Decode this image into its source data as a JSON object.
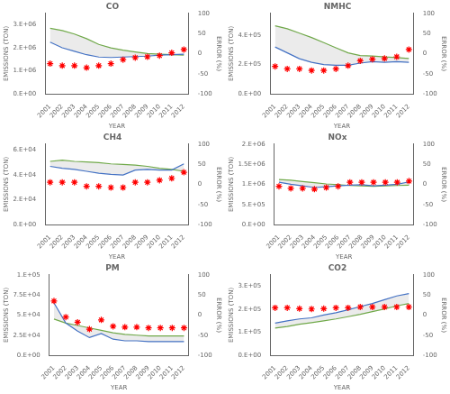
{
  "chart_data": [
    {
      "type": "line",
      "title": "CO",
      "xlabel": "YEAR",
      "ylabel": "EMISSIONS (TON)",
      "y2label": "ERROR (%)",
      "x": [
        2001,
        2002,
        2003,
        2004,
        2005,
        2006,
        2007,
        2008,
        2009,
        2010,
        2011,
        2012
      ],
      "xlim": [
        2000.6,
        2012.4
      ],
      "xticks": [
        2001,
        2002,
        2003,
        2004,
        2005,
        2006,
        2007,
        2008,
        2009,
        2010,
        2011,
        2012
      ],
      "ylim": [
        0,
        3500000
      ],
      "yticks": [
        {
          "value": 0,
          "label": "0.E+00"
        },
        {
          "value": 1000000,
          "label": "1.E+06"
        },
        {
          "value": 2000000,
          "label": "2.E+06"
        },
        {
          "value": 3000000,
          "label": "3.E+06"
        }
      ],
      "y2lim": [
        -100,
        100
      ],
      "y2ticks": [
        -100,
        -50,
        0,
        50,
        100
      ],
      "grid": false,
      "series": [
        {
          "color": "#4472C4",
          "values": [
            2250000,
            2000000,
            1850000,
            1700000,
            1600000,
            1580000,
            1600000,
            1620000,
            1640000,
            1680000,
            1700000,
            1720000
          ]
        },
        {
          "color": "#70AD47",
          "values": [
            2850000,
            2750000,
            2600000,
            2400000,
            2150000,
            2000000,
            1900000,
            1820000,
            1750000,
            1720000,
            1700000,
            1680000
          ]
        },
        {
          "type": "scatter",
          "axis": "y2",
          "color": "#FF0000",
          "marker": "star",
          "line_style": "none",
          "values": [
            -25,
            -30,
            -30,
            -35,
            -30,
            -25,
            -15,
            -10,
            -8,
            -5,
            2,
            10
          ]
        }
      ]
    },
    {
      "type": "line",
      "title": "NMHC",
      "xlabel": "YEAR",
      "ylabel": "EMISSIONS (TON)",
      "y2label": "ERROR (%)",
      "x": [
        2001,
        2002,
        2003,
        2004,
        2005,
        2006,
        2007,
        2008,
        2009,
        2010,
        2011,
        2012
      ],
      "xlim": [
        2000.6,
        2012.4
      ],
      "xticks": [
        2001,
        2002,
        2003,
        2004,
        2005,
        2006,
        2007,
        2008,
        2009,
        2010,
        2011,
        2012
      ],
      "ylim": [
        0,
        550000
      ],
      "yticks": [
        {
          "value": 0,
          "label": "0.E+00"
        },
        {
          "value": 200000,
          "label": "2.E+05"
        },
        {
          "value": 400000,
          "label": "4.E+05"
        }
      ],
      "y2lim": [
        -100,
        100
      ],
      "y2ticks": [
        -100,
        -50,
        0,
        50,
        100
      ],
      "grid": false,
      "series": [
        {
          "color": "#4472C4",
          "values": [
            320000,
            280000,
            240000,
            215000,
            200000,
            195000,
            195000,
            210000,
            220000,
            215000,
            220000,
            215000
          ]
        },
        {
          "color": "#70AD47",
          "values": [
            465000,
            445000,
            415000,
            385000,
            350000,
            315000,
            280000,
            262000,
            258000,
            252000,
            248000,
            242000
          ]
        },
        {
          "type": "scatter",
          "axis": "y2",
          "color": "#FF0000",
          "marker": "star",
          "line_style": "none",
          "values": [
            -32,
            -38,
            -38,
            -42,
            -42,
            -38,
            -30,
            -18,
            -14,
            -12,
            -8,
            10
          ]
        }
      ]
    },
    {
      "type": "line",
      "title": "CH4",
      "xlabel": "YEAR",
      "ylabel": "EMISSIONS (TON)",
      "y2label": "ERROR (%)",
      "x": [
        2001,
        2002,
        2003,
        2004,
        2005,
        2006,
        2007,
        2008,
        2009,
        2010,
        2011,
        2012
      ],
      "xlim": [
        2000.6,
        2012.4
      ],
      "xticks": [
        2001,
        2002,
        2003,
        2004,
        2005,
        2006,
        2007,
        2008,
        2009,
        2010,
        2011,
        2012
      ],
      "ylim": [
        0,
        65000
      ],
      "yticks": [
        {
          "value": 0,
          "label": "0.E+00"
        },
        {
          "value": 20000,
          "label": "2.E+04"
        },
        {
          "value": 40000,
          "label": "4.E+04"
        },
        {
          "value": 60000,
          "label": "6.E+04"
        }
      ],
      "y2lim": [
        -100,
        100
      ],
      "y2ticks": [
        -100,
        -50,
        0,
        50,
        100
      ],
      "grid": false,
      "series": [
        {
          "color": "#4472C4",
          "values": [
            47000,
            45500,
            44500,
            43000,
            41500,
            40500,
            40000,
            44000,
            44500,
            44000,
            44000,
            49000
          ]
        },
        {
          "color": "#70AD47",
          "values": [
            51000,
            52000,
            51000,
            50500,
            50000,
            49000,
            48500,
            48000,
            47000,
            45500,
            44500,
            43000
          ]
        },
        {
          "type": "scatter",
          "axis": "y2",
          "color": "#FF0000",
          "marker": "star",
          "line_style": "none",
          "values": [
            5,
            5,
            5,
            -5,
            -5,
            -8,
            -8,
            5,
            5,
            10,
            15,
            30
          ]
        }
      ]
    },
    {
      "type": "line",
      "title": "NOx",
      "xlabel": "YEAR",
      "ylabel": "EMISSIONS (TON)",
      "y2label": "ERROR (%)",
      "x": [
        2001,
        2002,
        2003,
        2004,
        2005,
        2006,
        2007,
        2008,
        2009,
        2010,
        2011,
        2012
      ],
      "xlim": [
        2000.6,
        2012.4
      ],
      "xticks": [
        2001,
        2002,
        2003,
        2004,
        2005,
        2006,
        2007,
        2008,
        2009,
        2010,
        2011,
        2012
      ],
      "ylim": [
        0,
        2000000
      ],
      "yticks": [
        {
          "value": 0,
          "label": "0.E+00"
        },
        {
          "value": 500000,
          "label": "5.E+05"
        },
        {
          "value": 1000000,
          "label": "1.E+06"
        },
        {
          "value": 1500000,
          "label": "1.5E+06"
        },
        {
          "value": 2000000,
          "label": "2.E+06"
        }
      ],
      "y2lim": [
        -100,
        100
      ],
      "y2ticks": [
        -100,
        -50,
        0,
        50,
        100
      ],
      "grid": false,
      "series": [
        {
          "color": "#4472C4",
          "values": [
            1050000,
            1000000,
            960000,
            920000,
            940000,
            960000,
            980000,
            990000,
            960000,
            980000,
            1000000,
            1060000
          ]
        },
        {
          "color": "#70AD47",
          "values": [
            1120000,
            1100000,
            1070000,
            1040000,
            1010000,
            990000,
            970000,
            960000,
            950000,
            960000,
            970000,
            980000
          ]
        },
        {
          "type": "scatter",
          "axis": "y2",
          "color": "#FF0000",
          "marker": "star",
          "line_style": "none",
          "values": [
            -5,
            -10,
            -10,
            -12,
            -8,
            -5,
            5,
            5,
            5,
            5,
            5,
            8
          ]
        }
      ]
    },
    {
      "type": "line",
      "title": "PM",
      "xlabel": "YEAR",
      "ylabel": "EMISSIONS (TON)",
      "y2label": "ERROR (%)",
      "x": [
        2001,
        2002,
        2003,
        2004,
        2005,
        2006,
        2007,
        2008,
        2009,
        2010,
        2011,
        2012
      ],
      "xlim": [
        2000.6,
        2012.4
      ],
      "xticks": [
        2001,
        2002,
        2003,
        2004,
        2005,
        2006,
        2007,
        2008,
        2009,
        2010,
        2011,
        2012
      ],
      "ylim": [
        0,
        100000
      ],
      "yticks": [
        {
          "value": 0,
          "label": "0.E+00"
        },
        {
          "value": 25000,
          "label": "2.5E+04"
        },
        {
          "value": 50000,
          "label": "5.E+04"
        },
        {
          "value": 75000,
          "label": "7.5E+04"
        },
        {
          "value": 100000,
          "label": "1.E+05"
        }
      ],
      "y2lim": [
        -100,
        100
      ],
      "y2ticks": [
        -100,
        -50,
        0,
        50,
        100
      ],
      "grid": false,
      "series": [
        {
          "color": "#4472C4",
          "values": [
            65000,
            40000,
            30000,
            22000,
            27000,
            20000,
            18000,
            18000,
            17000,
            17000,
            17000,
            17000
          ]
        },
        {
          "color": "#70AD47",
          "values": [
            45000,
            40000,
            37000,
            34000,
            31000,
            28000,
            26000,
            25000,
            24000,
            24000,
            24000,
            24000
          ]
        },
        {
          "type": "scatter",
          "axis": "y2",
          "color": "#FF0000",
          "marker": "star",
          "line_style": "none",
          "values": [
            35,
            -5,
            -18,
            -35,
            -12,
            -28,
            -30,
            -30,
            -32,
            -32,
            -32,
            -32
          ]
        }
      ]
    },
    {
      "type": "line",
      "title": "CO2",
      "xlabel": "YEAR",
      "ylabel": "EMISSIONS (TON)",
      "y2label": "ERROR (%)",
      "x": [
        2001,
        2002,
        2003,
        2004,
        2005,
        2006,
        2007,
        2008,
        2009,
        2010,
        2011,
        2012
      ],
      "xlim": [
        2000.6,
        2012.4
      ],
      "xticks": [
        2001,
        2002,
        2003,
        2004,
        2005,
        2006,
        2007,
        2008,
        2009,
        2010,
        2011,
        2012
      ],
      "ylim": [
        0,
        350000
      ],
      "yticks": [
        {
          "value": 0,
          "label": "0.E+00"
        },
        {
          "value": 100000,
          "label": "1.E+05"
        },
        {
          "value": 200000,
          "label": "2.E+05"
        },
        {
          "value": 300000,
          "label": "3.E+05"
        }
      ],
      "y2lim": [
        -100,
        100
      ],
      "y2ticks": [
        -100,
        -50,
        0,
        50,
        100
      ],
      "grid": false,
      "series": [
        {
          "color": "#4472C4",
          "values": [
            140000,
            150000,
            158000,
            163000,
            175000,
            185000,
            198000,
            212000,
            225000,
            242000,
            258000,
            268000
          ]
        },
        {
          "color": "#70AD47",
          "values": [
            118000,
            125000,
            135000,
            142000,
            150000,
            158000,
            168000,
            178000,
            190000,
            202000,
            215000,
            225000
          ]
        },
        {
          "type": "scatter",
          "axis": "y2",
          "color": "#FF0000",
          "marker": "star",
          "line_style": "none",
          "values": [
            18,
            18,
            16,
            15,
            16,
            18,
            18,
            20,
            20,
            20,
            20,
            20
          ]
        }
      ]
    }
  ]
}
